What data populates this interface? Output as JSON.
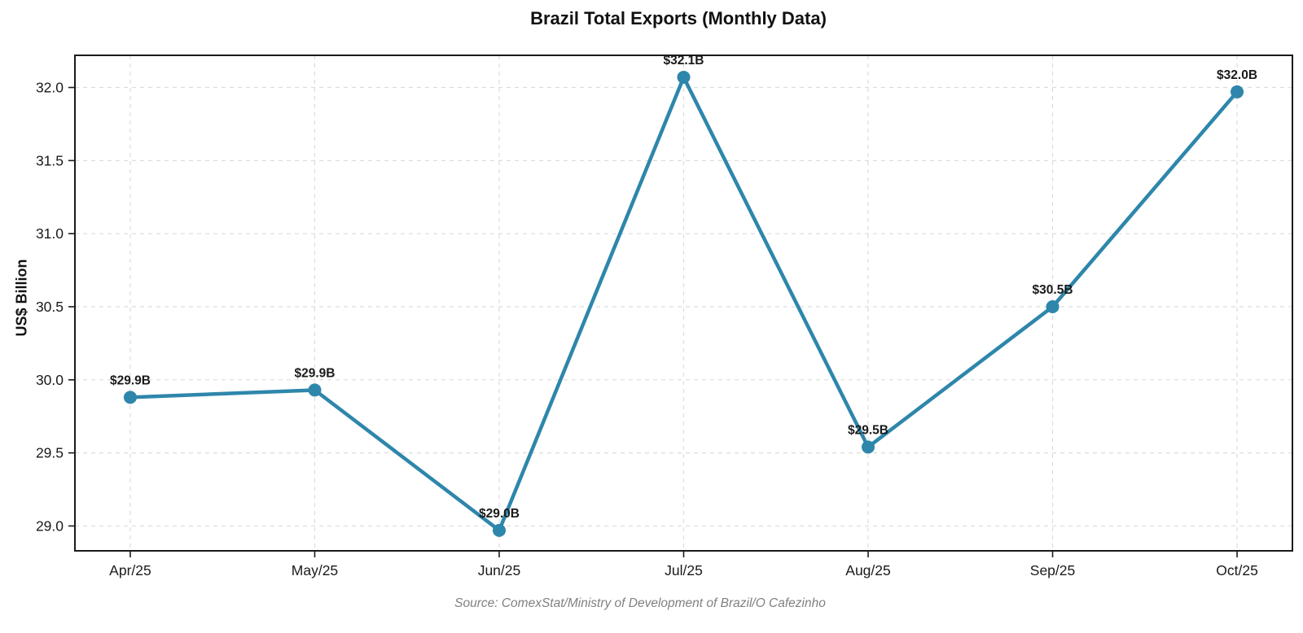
{
  "title": "Brazil Total Exports (Monthly Data)",
  "source_note": "Source: ComexStat/Ministry of Development of Brazil/O Cafezinho",
  "chart_data": {
    "type": "line",
    "title": "Brazil Total Exports (Monthly Data)",
    "xlabel": "",
    "ylabel": "US$ Billion",
    "categories": [
      "Apr/25",
      "May/25",
      "Jun/25",
      "Jul/25",
      "Aug/25",
      "Sep/25",
      "Oct/25"
    ],
    "values": [
      29.88,
      29.93,
      28.97,
      32.07,
      29.54,
      30.5,
      31.97
    ],
    "point_labels": [
      "$29.9B",
      "$29.9B",
      "$29.0B",
      "$32.1B",
      "$29.5B",
      "$30.5B",
      "$32.0B"
    ],
    "yticks": [
      29.0,
      29.5,
      30.0,
      30.5,
      31.0,
      31.5,
      32.0
    ],
    "ylim": [
      28.83,
      32.22
    ],
    "grid": true,
    "grid_style": "dashed",
    "legend": "none",
    "line_color": "#2e86ab",
    "marker": "circle",
    "grid_color": "#dcdcdc",
    "spine_color": "#1a1a1a",
    "label_color": "#111111"
  }
}
